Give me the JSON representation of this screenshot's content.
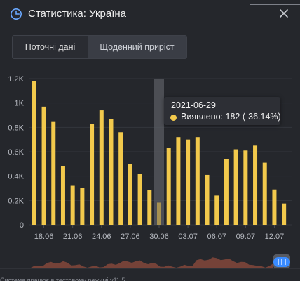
{
  "header": {
    "title": "Статистика: Україна",
    "icon": "chart-icon",
    "close_icon": "close-icon"
  },
  "tabs": [
    {
      "label": "Поточні дані",
      "active": false
    },
    {
      "label": "Щоденний приріст",
      "active": true
    }
  ],
  "tooltip": {
    "date": "2021-06-29",
    "value_text": "Виявлено: 182 (-36.14%)",
    "dot_color": "#f2c94c"
  },
  "colors": {
    "bar": "#f2c94c",
    "background": "#25272c",
    "highlight": "#5a5c62",
    "navigator": "#8a4a3c"
  },
  "footer": {
    "note": "Система працює в тестовому режимі v11.5"
  },
  "chart_data": {
    "type": "bar",
    "y_tick_labels": [
      "0",
      "0.2K",
      "0.4K",
      "0.6K",
      "0.8K",
      "1K",
      "1.2K"
    ],
    "x_tick_labels": [
      "18.06",
      "21.06",
      "24.06",
      "27.06",
      "30.06",
      "03.07",
      "06.07",
      "09.07",
      "12.07"
    ],
    "ylim": [
      0,
      1200
    ],
    "series": [
      {
        "values": [
          1180,
          970,
          850,
          480,
          320,
          300,
          830,
          940,
          870,
          760,
          500,
          420,
          285,
          182,
          630,
          720,
          700,
          720,
          410,
          240,
          540,
          620,
          610,
          650,
          510,
          290,
          175
        ]
      }
    ],
    "highlight_index": 13,
    "grid": true
  }
}
